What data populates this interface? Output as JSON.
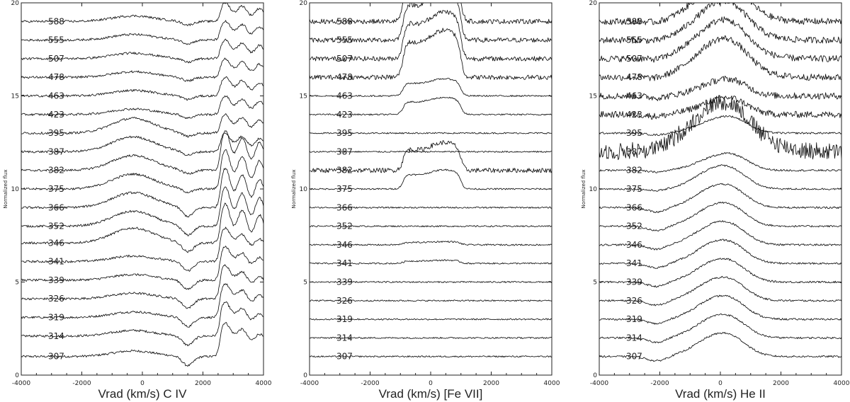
{
  "chart_data": [
    {
      "type": "line",
      "title": "",
      "xlabel": "Vrad (km/s) C IV",
      "ylabel": "Normalized flux",
      "xlim": [
        -4000,
        4000
      ],
      "ylim": [
        0,
        20
      ],
      "xticks": [
        "-4000",
        "-2000",
        "0",
        "2000",
        "4000"
      ],
      "yticks": [
        "0",
        "5",
        "10",
        "15",
        "20"
      ],
      "grid": false,
      "epoch_labels": [
        "307",
        "314",
        "319",
        "326",
        "339",
        "341",
        "346",
        "352",
        "366",
        "375",
        "382",
        "387",
        "395",
        "423",
        "463",
        "478",
        "507",
        "555",
        "588"
      ],
      "series": [
        {
          "name": "307",
          "baseline": 1.0
        },
        {
          "name": "314",
          "baseline": 2.1
        },
        {
          "name": "319",
          "baseline": 3.1
        },
        {
          "name": "326",
          "baseline": 4.1
        },
        {
          "name": "339",
          "baseline": 5.1
        },
        {
          "name": "341",
          "baseline": 6.1
        },
        {
          "name": "346",
          "baseline": 7.1
        },
        {
          "name": "352",
          "baseline": 8.0
        },
        {
          "name": "366",
          "baseline": 9.0
        },
        {
          "name": "375",
          "baseline": 10.0
        },
        {
          "name": "382",
          "baseline": 11.0
        },
        {
          "name": "387",
          "baseline": 12.0
        },
        {
          "name": "395",
          "baseline": 13.0
        },
        {
          "name": "423",
          "baseline": 14.0
        },
        {
          "name": "463",
          "baseline": 15.0
        },
        {
          "name": "478",
          "baseline": 16.0
        },
        {
          "name": "507",
          "baseline": 17.0
        },
        {
          "name": "555",
          "baseline": 18.0
        },
        {
          "name": "588",
          "baseline": 19.0
        }
      ]
    },
    {
      "type": "line",
      "title": "",
      "xlabel": "Vrad (km/s) [Fe VII]",
      "ylabel": "Normalized flux",
      "xlim": [
        -4000,
        4000
      ],
      "ylim": [
        0,
        20
      ],
      "xticks": [
        "-4000",
        "-2000",
        "0",
        "2000",
        "4000"
      ],
      "yticks": [
        "0",
        "5",
        "10",
        "15",
        "20"
      ],
      "grid": false,
      "epoch_labels": [
        "307",
        "314",
        "319",
        "326",
        "339",
        "341",
        "346",
        "352",
        "366",
        "375",
        "382",
        "387",
        "395",
        "423",
        "463",
        "478",
        "507",
        "555",
        "588"
      ],
      "series": [
        {
          "name": "307",
          "baseline": 1.0
        },
        {
          "name": "314",
          "baseline": 2.0
        },
        {
          "name": "319",
          "baseline": 3.0
        },
        {
          "name": "326",
          "baseline": 4.0
        },
        {
          "name": "339",
          "baseline": 5.0
        },
        {
          "name": "341",
          "baseline": 6.0
        },
        {
          "name": "346",
          "baseline": 7.0
        },
        {
          "name": "352",
          "baseline": 8.0
        },
        {
          "name": "366",
          "baseline": 9.0
        },
        {
          "name": "375",
          "baseline": 10.0
        },
        {
          "name": "382",
          "baseline": 11.0
        },
        {
          "name": "387",
          "baseline": 12.0
        },
        {
          "name": "395",
          "baseline": 13.0
        },
        {
          "name": "423",
          "baseline": 14.0
        },
        {
          "name": "463",
          "baseline": 15.0
        },
        {
          "name": "478",
          "baseline": 16.0
        },
        {
          "name": "507",
          "baseline": 17.0
        },
        {
          "name": "555",
          "baseline": 18.0
        },
        {
          "name": "588",
          "baseline": 19.0
        }
      ]
    },
    {
      "type": "line",
      "title": "",
      "xlabel": "Vrad (km/s) He II",
      "ylabel": "Normalized flux",
      "xlim": [
        -4000,
        4000
      ],
      "ylim": [
        0,
        20
      ],
      "xticks": [
        "-4000",
        "-2000",
        "0",
        "2000",
        "4000"
      ],
      "yticks": [
        "0",
        "5",
        "10",
        "15",
        "20"
      ],
      "grid": false,
      "epoch_labels": [
        "307",
        "314",
        "319",
        "326",
        "339",
        "341",
        "346",
        "352",
        "366",
        "375",
        "382",
        "387",
        "395",
        "423",
        "463",
        "478",
        "507",
        "555",
        "588"
      ],
      "series": [
        {
          "name": "307",
          "baseline": 1.0
        },
        {
          "name": "314",
          "baseline": 2.0
        },
        {
          "name": "319",
          "baseline": 3.0
        },
        {
          "name": "326",
          "baseline": 4.0
        },
        {
          "name": "339",
          "baseline": 5.0
        },
        {
          "name": "341",
          "baseline": 6.0
        },
        {
          "name": "346",
          "baseline": 7.0
        },
        {
          "name": "352",
          "baseline": 8.0
        },
        {
          "name": "366",
          "baseline": 9.0
        },
        {
          "name": "375",
          "baseline": 10.0
        },
        {
          "name": "382",
          "baseline": 11.0
        },
        {
          "name": "387",
          "baseline": 12.0
        },
        {
          "name": "395",
          "baseline": 13.0
        },
        {
          "name": "423",
          "baseline": 14.0
        },
        {
          "name": "463",
          "baseline": 15.0
        },
        {
          "name": "478",
          "baseline": 16.0
        },
        {
          "name": "507",
          "baseline": 17.0
        },
        {
          "name": "555",
          "baseline": 18.0
        },
        {
          "name": "588",
          "baseline": 19.0
        }
      ]
    }
  ]
}
